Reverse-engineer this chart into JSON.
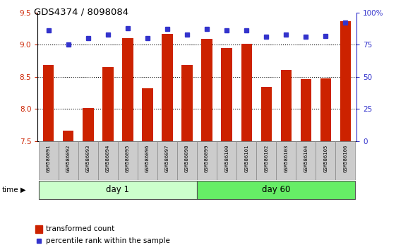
{
  "title": "GDS4374 / 8098084",
  "samples": [
    "GSM586091",
    "GSM586092",
    "GSM586093",
    "GSM586094",
    "GSM586095",
    "GSM586096",
    "GSM586097",
    "GSM586098",
    "GSM586099",
    "GSM586100",
    "GSM586101",
    "GSM586102",
    "GSM586103",
    "GSM586104",
    "GSM586105",
    "GSM586106"
  ],
  "bar_values": [
    8.68,
    7.67,
    8.02,
    8.65,
    9.1,
    8.32,
    9.17,
    8.68,
    9.09,
    8.95,
    9.01,
    8.34,
    8.61,
    8.47,
    8.48,
    9.37
  ],
  "dot_values": [
    86,
    75,
    80,
    83,
    88,
    80,
    87,
    83,
    87,
    86,
    86,
    81,
    83,
    81,
    82,
    92
  ],
  "ylim_left": [
    7.5,
    9.5
  ],
  "ylim_right": [
    0,
    100
  ],
  "yticks_left": [
    7.5,
    8.0,
    8.5,
    9.0,
    9.5
  ],
  "yticks_right": [
    0,
    25,
    50,
    75,
    100
  ],
  "bar_color": "#cc2200",
  "dot_color": "#3333cc",
  "day1_samples": 8,
  "day60_samples": 8,
  "day1_label": "day 1",
  "day60_label": "day 60",
  "day1_color": "#ccffcc",
  "day60_color": "#66ee66",
  "time_label": "time",
  "legend_bar": "transformed count",
  "legend_dot": "percentile rank within the sample",
  "tick_label_bg": "#cccccc",
  "tick_label_edge": "#888888"
}
